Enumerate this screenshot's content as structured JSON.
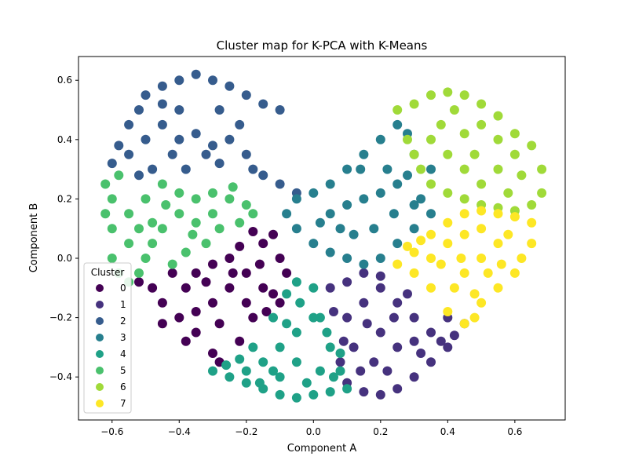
{
  "chart_data": {
    "type": "scatter",
    "title": "Cluster map for K-PCA with K-Means",
    "xlabel": "Component A",
    "ylabel": "Component B",
    "xlim": [
      -0.7,
      0.75
    ],
    "ylim": [
      -0.545,
      0.68
    ],
    "xticks": [
      -0.6,
      -0.4,
      -0.2,
      0.0,
      0.2,
      0.4,
      0.6
    ],
    "xtick_labels": [
      "−0.6",
      "−0.4",
      "−0.2",
      "0.0",
      "0.2",
      "0.4",
      "0.6"
    ],
    "yticks": [
      -0.4,
      -0.2,
      0.0,
      0.2,
      0.4,
      0.6
    ],
    "ytick_labels": [
      "−0.4",
      "−0.2",
      "0.0",
      "0.2",
      "0.4",
      "0.6"
    ],
    "grid": false,
    "legend": {
      "title": "Cluster",
      "placement": "lower-left"
    },
    "series": [
      {
        "name": "0",
        "color": "#440154",
        "points": [
          [
            -0.52,
            -0.08
          ],
          [
            -0.48,
            -0.1
          ],
          [
            -0.45,
            -0.15
          ],
          [
            -0.4,
            -0.2
          ],
          [
            -0.35,
            -0.25
          ],
          [
            -0.3,
            -0.32
          ],
          [
            -0.28,
            -0.35
          ],
          [
            -0.35,
            -0.05
          ],
          [
            -0.3,
            -0.02
          ],
          [
            -0.25,
            0.0
          ],
          [
            -0.2,
            -0.05
          ],
          [
            -0.15,
            0.05
          ],
          [
            -0.12,
            0.08
          ],
          [
            -0.18,
            0.09
          ],
          [
            -0.1,
            0.0
          ],
          [
            -0.08,
            -0.05
          ],
          [
            -0.12,
            -0.12
          ],
          [
            -0.18,
            -0.2
          ],
          [
            -0.22,
            -0.28
          ],
          [
            -0.3,
            -0.15
          ],
          [
            -0.38,
            -0.1
          ],
          [
            -0.42,
            -0.05
          ],
          [
            -0.25,
            -0.1
          ],
          [
            -0.2,
            -0.15
          ],
          [
            -0.15,
            -0.1
          ],
          [
            -0.1,
            -0.15
          ],
          [
            -0.28,
            -0.22
          ],
          [
            -0.35,
            -0.18
          ],
          [
            -0.45,
            -0.22
          ],
          [
            -0.38,
            -0.28
          ],
          [
            -0.24,
            -0.05
          ],
          [
            -0.32,
            -0.08
          ],
          [
            -0.16,
            -0.02
          ],
          [
            -0.22,
            0.04
          ],
          [
            -0.14,
            -0.18
          ]
        ]
      },
      {
        "name": "1",
        "color": "#46327e",
        "points": [
          [
            0.05,
            -0.1
          ],
          [
            0.1,
            -0.08
          ],
          [
            0.15,
            -0.05
          ],
          [
            0.2,
            -0.1
          ],
          [
            0.25,
            -0.15
          ],
          [
            0.3,
            -0.2
          ],
          [
            0.35,
            -0.25
          ],
          [
            0.4,
            -0.2
          ],
          [
            0.45,
            -0.22
          ],
          [
            0.4,
            -0.3
          ],
          [
            0.35,
            -0.35
          ],
          [
            0.3,
            -0.4
          ],
          [
            0.25,
            -0.44
          ],
          [
            0.2,
            -0.46
          ],
          [
            0.15,
            -0.45
          ],
          [
            0.1,
            -0.42
          ],
          [
            0.08,
            -0.35
          ],
          [
            0.09,
            -0.28
          ],
          [
            0.1,
            -0.2
          ],
          [
            0.15,
            -0.15
          ],
          [
            0.2,
            -0.25
          ],
          [
            0.25,
            -0.3
          ],
          [
            0.3,
            -0.28
          ],
          [
            0.18,
            -0.35
          ],
          [
            0.22,
            -0.38
          ],
          [
            0.28,
            -0.12
          ],
          [
            0.12,
            -0.3
          ],
          [
            0.16,
            -0.22
          ],
          [
            0.32,
            -0.32
          ],
          [
            0.38,
            -0.28
          ],
          [
            0.06,
            -0.18
          ],
          [
            0.14,
            -0.38
          ],
          [
            0.24,
            -0.2
          ],
          [
            0.42,
            -0.26
          ],
          [
            0.2,
            -0.06
          ]
        ]
      },
      {
        "name": "2",
        "color": "#365c8d",
        "points": [
          [
            -0.6,
            0.32
          ],
          [
            -0.58,
            0.38
          ],
          [
            -0.55,
            0.45
          ],
          [
            -0.52,
            0.5
          ],
          [
            -0.5,
            0.55
          ],
          [
            -0.45,
            0.58
          ],
          [
            -0.4,
            0.6
          ],
          [
            -0.35,
            0.62
          ],
          [
            -0.3,
            0.6
          ],
          [
            -0.25,
            0.58
          ],
          [
            -0.2,
            0.55
          ],
          [
            -0.15,
            0.52
          ],
          [
            -0.1,
            0.5
          ],
          [
            -0.55,
            0.35
          ],
          [
            -0.5,
            0.4
          ],
          [
            -0.45,
            0.45
          ],
          [
            -0.4,
            0.5
          ],
          [
            -0.35,
            0.42
          ],
          [
            -0.3,
            0.38
          ],
          [
            -0.28,
            0.32
          ],
          [
            -0.32,
            0.35
          ],
          [
            -0.38,
            0.3
          ],
          [
            -0.42,
            0.35
          ],
          [
            -0.48,
            0.3
          ],
          [
            -0.25,
            0.4
          ],
          [
            -0.2,
            0.35
          ],
          [
            -0.18,
            0.3
          ],
          [
            -0.15,
            0.28
          ],
          [
            -0.1,
            0.25
          ],
          [
            -0.05,
            0.22
          ],
          [
            -0.22,
            0.45
          ],
          [
            -0.28,
            0.5
          ],
          [
            -0.4,
            0.4
          ],
          [
            -0.45,
            0.52
          ],
          [
            -0.52,
            0.28
          ]
        ]
      },
      {
        "name": "3",
        "color": "#277f8e",
        "points": [
          [
            -0.05,
            0.2
          ],
          [
            0.0,
            0.22
          ],
          [
            0.05,
            0.25
          ],
          [
            0.1,
            0.3
          ],
          [
            0.15,
            0.35
          ],
          [
            0.2,
            0.4
          ],
          [
            0.25,
            0.45
          ],
          [
            0.28,
            0.42
          ],
          [
            0.3,
            0.35
          ],
          [
            0.35,
            0.3
          ],
          [
            0.32,
            0.2
          ],
          [
            0.35,
            0.15
          ],
          [
            0.3,
            0.1
          ],
          [
            0.25,
            0.05
          ],
          [
            0.2,
            0.0
          ],
          [
            0.15,
            -0.02
          ],
          [
            0.1,
            0.0
          ],
          [
            0.05,
            0.02
          ],
          [
            0.0,
            0.05
          ],
          [
            -0.05,
            0.1
          ],
          [
            -0.08,
            0.15
          ],
          [
            0.05,
            0.15
          ],
          [
            0.1,
            0.18
          ],
          [
            0.15,
            0.2
          ],
          [
            0.2,
            0.22
          ],
          [
            0.25,
            0.25
          ],
          [
            0.18,
            0.1
          ],
          [
            0.12,
            0.08
          ],
          [
            0.08,
            0.1
          ],
          [
            0.22,
            0.3
          ],
          [
            0.28,
            0.28
          ],
          [
            0.3,
            0.18
          ],
          [
            0.14,
            0.3
          ],
          [
            0.02,
            0.12
          ],
          [
            0.24,
            0.15
          ]
        ]
      },
      {
        "name": "4",
        "color": "#1fa187",
        "points": [
          [
            -0.3,
            -0.38
          ],
          [
            -0.25,
            -0.4
          ],
          [
            -0.2,
            -0.42
          ],
          [
            -0.15,
            -0.44
          ],
          [
            -0.1,
            -0.46
          ],
          [
            -0.05,
            -0.47
          ],
          [
            0.0,
            -0.46
          ],
          [
            0.05,
            -0.45
          ],
          [
            0.1,
            -0.44
          ],
          [
            0.08,
            -0.38
          ],
          [
            0.05,
            -0.3
          ],
          [
            0.02,
            -0.2
          ],
          [
            0.0,
            -0.1
          ],
          [
            -0.05,
            -0.08
          ],
          [
            -0.08,
            -0.12
          ],
          [
            -0.12,
            -0.2
          ],
          [
            -0.18,
            -0.3
          ],
          [
            -0.22,
            -0.34
          ],
          [
            -0.15,
            -0.35
          ],
          [
            -0.1,
            -0.3
          ],
          [
            -0.05,
            -0.25
          ],
          [
            0.0,
            -0.2
          ],
          [
            -0.05,
            -0.35
          ],
          [
            0.02,
            -0.38
          ],
          [
            -0.1,
            -0.4
          ],
          [
            -0.02,
            -0.42
          ],
          [
            0.06,
            -0.4
          ],
          [
            -0.08,
            -0.22
          ],
          [
            -0.12,
            -0.38
          ],
          [
            -0.2,
            -0.38
          ],
          [
            -0.04,
            -0.15
          ],
          [
            0.04,
            -0.25
          ],
          [
            -0.16,
            -0.42
          ],
          [
            -0.26,
            -0.36
          ],
          [
            0.08,
            -0.32
          ]
        ]
      },
      {
        "name": "5",
        "color": "#4ac16d",
        "points": [
          [
            -0.62,
            0.25
          ],
          [
            -0.6,
            0.2
          ],
          [
            -0.6,
            0.1
          ],
          [
            -0.6,
            0.0
          ],
          [
            -0.58,
            -0.05
          ],
          [
            -0.55,
            -0.08
          ],
          [
            -0.52,
            -0.05
          ],
          [
            -0.5,
            0.0
          ],
          [
            -0.48,
            0.05
          ],
          [
            -0.45,
            0.1
          ],
          [
            -0.4,
            0.15
          ],
          [
            -0.35,
            0.2
          ],
          [
            -0.3,
            0.22
          ],
          [
            -0.25,
            0.2
          ],
          [
            -0.2,
            0.18
          ],
          [
            -0.18,
            0.15
          ],
          [
            -0.22,
            0.12
          ],
          [
            -0.28,
            0.1
          ],
          [
            -0.32,
            0.05
          ],
          [
            -0.38,
            0.02
          ],
          [
            -0.42,
            -0.02
          ],
          [
            -0.55,
            0.15
          ],
          [
            -0.5,
            0.2
          ],
          [
            -0.45,
            0.25
          ],
          [
            -0.4,
            0.22
          ],
          [
            -0.55,
            0.05
          ],
          [
            -0.48,
            0.12
          ],
          [
            -0.35,
            0.12
          ],
          [
            -0.58,
            0.28
          ],
          [
            -0.52,
            0.1
          ],
          [
            -0.44,
            0.18
          ],
          [
            -0.3,
            0.15
          ],
          [
            -0.24,
            0.24
          ],
          [
            -0.36,
            0.08
          ],
          [
            -0.62,
            0.15
          ]
        ]
      },
      {
        "name": "6",
        "color": "#a0da39",
        "points": [
          [
            0.25,
            0.5
          ],
          [
            0.3,
            0.52
          ],
          [
            0.35,
            0.55
          ],
          [
            0.4,
            0.56
          ],
          [
            0.45,
            0.55
          ],
          [
            0.5,
            0.52
          ],
          [
            0.55,
            0.48
          ],
          [
            0.6,
            0.42
          ],
          [
            0.65,
            0.38
          ],
          [
            0.68,
            0.3
          ],
          [
            0.68,
            0.22
          ],
          [
            0.65,
            0.18
          ],
          [
            0.6,
            0.16
          ],
          [
            0.55,
            0.17
          ],
          [
            0.5,
            0.18
          ],
          [
            0.45,
            0.2
          ],
          [
            0.4,
            0.22
          ],
          [
            0.35,
            0.25
          ],
          [
            0.32,
            0.3
          ],
          [
            0.3,
            0.35
          ],
          [
            0.28,
            0.4
          ],
          [
            0.35,
            0.4
          ],
          [
            0.4,
            0.35
          ],
          [
            0.45,
            0.3
          ],
          [
            0.5,
            0.25
          ],
          [
            0.55,
            0.3
          ],
          [
            0.6,
            0.35
          ],
          [
            0.55,
            0.4
          ],
          [
            0.5,
            0.45
          ],
          [
            0.45,
            0.42
          ],
          [
            0.38,
            0.45
          ],
          [
            0.42,
            0.5
          ],
          [
            0.62,
            0.28
          ],
          [
            0.48,
            0.35
          ],
          [
            0.58,
            0.22
          ]
        ]
      },
      {
        "name": "7",
        "color": "#fde725",
        "points": [
          [
            0.25,
            -0.02
          ],
          [
            0.3,
            0.02
          ],
          [
            0.35,
            0.08
          ],
          [
            0.4,
            0.12
          ],
          [
            0.45,
            0.15
          ],
          [
            0.5,
            0.16
          ],
          [
            0.55,
            0.15
          ],
          [
            0.6,
            0.14
          ],
          [
            0.65,
            0.12
          ],
          [
            0.65,
            0.05
          ],
          [
            0.62,
            0.0
          ],
          [
            0.6,
            -0.05
          ],
          [
            0.55,
            -0.1
          ],
          [
            0.5,
            -0.15
          ],
          [
            0.48,
            -0.2
          ],
          [
            0.45,
            -0.22
          ],
          [
            0.4,
            -0.18
          ],
          [
            0.35,
            -0.1
          ],
          [
            0.3,
            -0.05
          ],
          [
            0.35,
            0.0
          ],
          [
            0.4,
            0.05
          ],
          [
            0.45,
            0.08
          ],
          [
            0.5,
            0.1
          ],
          [
            0.55,
            0.05
          ],
          [
            0.5,
            0.0
          ],
          [
            0.45,
            -0.05
          ],
          [
            0.42,
            -0.1
          ],
          [
            0.48,
            -0.12
          ],
          [
            0.52,
            -0.05
          ],
          [
            0.58,
            0.08
          ],
          [
            0.38,
            -0.02
          ],
          [
            0.32,
            0.06
          ],
          [
            0.44,
            0.0
          ],
          [
            0.56,
            -0.02
          ],
          [
            0.28,
            0.04
          ]
        ]
      }
    ]
  }
}
